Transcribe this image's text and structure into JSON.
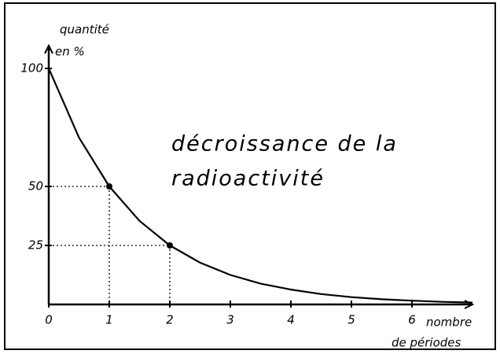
{
  "chart_data": {
    "type": "line",
    "title": [
      "décroissance de la",
      "radioactivité"
    ],
    "y_label": [
      "quantité",
      "en %"
    ],
    "x_label": [
      "nombre",
      "de périodes"
    ],
    "x": [
      0,
      0.5,
      1,
      1.5,
      2,
      2.5,
      3,
      3.5,
      4,
      4.5,
      5,
      5.5,
      6,
      6.5,
      7
    ],
    "values": [
      100,
      70.7,
      50,
      35.4,
      25,
      17.7,
      12.5,
      8.8,
      6.3,
      4.4,
      3.1,
      2.2,
      1.6,
      1.1,
      0.8
    ],
    "color": "#000000",
    "highlighted": [
      {
        "x": 1,
        "y": 50
      },
      {
        "x": 2,
        "y": 25
      }
    ],
    "xlim": [
      0,
      7
    ],
    "xticks": [
      0,
      1,
      2,
      3,
      4,
      5,
      6
    ],
    "ylim": [
      0,
      105
    ],
    "yticks": [
      25,
      50,
      100
    ],
    "grid": false
  }
}
